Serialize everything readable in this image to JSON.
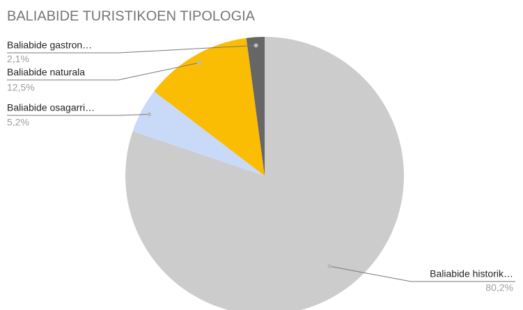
{
  "chart_data": {
    "type": "pie",
    "title": "BALIABIDE TURISTIKOEN TIPOLOGIA",
    "categories": [
      "Baliabide historik…",
      "Baliabide osagarri…",
      "Baliabide naturala",
      "Baliabide gastron…"
    ],
    "values": [
      80.2,
      5.2,
      12.5,
      2.1
    ],
    "value_labels": [
      "80,2%",
      "5,2%",
      "12,5%",
      "2,1%"
    ],
    "colors": [
      "#cccccc",
      "#c9daf8",
      "#fbbc04",
      "#666666"
    ]
  }
}
